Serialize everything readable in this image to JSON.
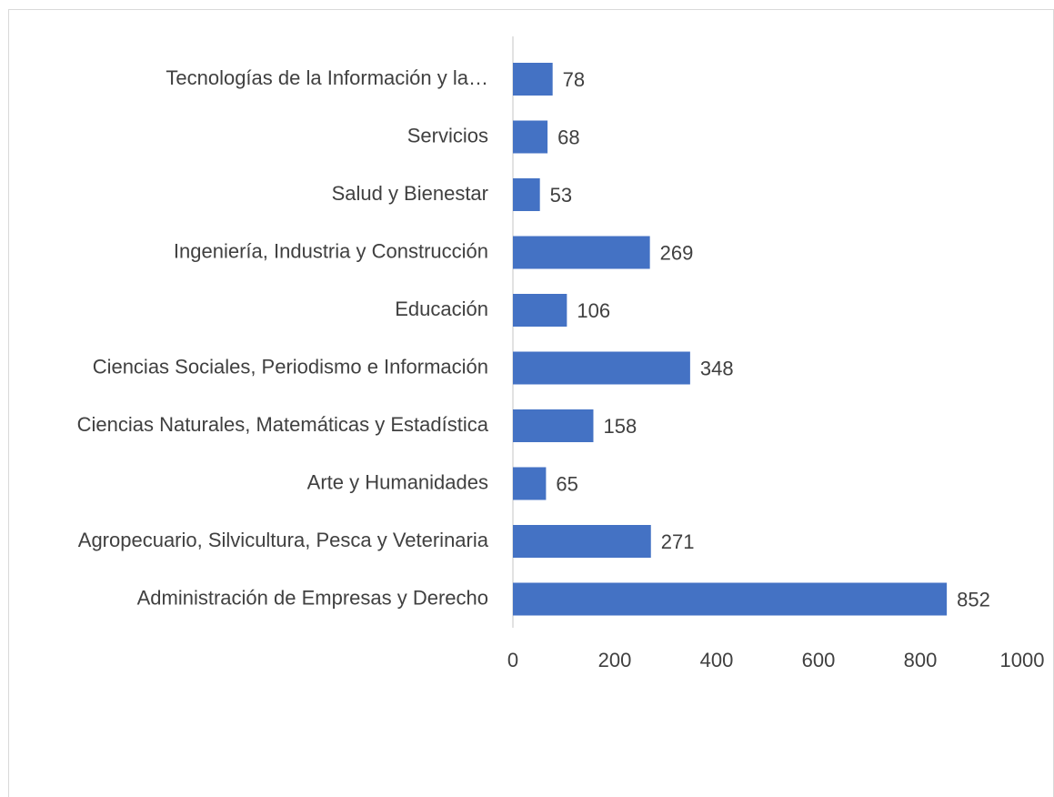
{
  "chart_data": {
    "type": "hbar",
    "categories": [
      "Tecnologías de la Información y la…",
      "Servicios",
      "Salud y Bienestar",
      "Ingeniería, Industria y Construcción",
      "Educación",
      "Ciencias Sociales, Periodismo e Información",
      "Ciencias Naturales, Matemáticas y Estadística",
      "Arte y Humanidades",
      "Agropecuario, Silvicultura, Pesca y Veterinaria",
      "Administración de Empresas y Derecho"
    ],
    "values": [
      78,
      68,
      53,
      269,
      106,
      348,
      158,
      65,
      271,
      852
    ],
    "color": "#4472c4",
    "xlim": [
      0,
      1000
    ],
    "xticks": [
      0,
      200,
      400,
      600,
      800,
      1000
    ],
    "grid": false
  }
}
